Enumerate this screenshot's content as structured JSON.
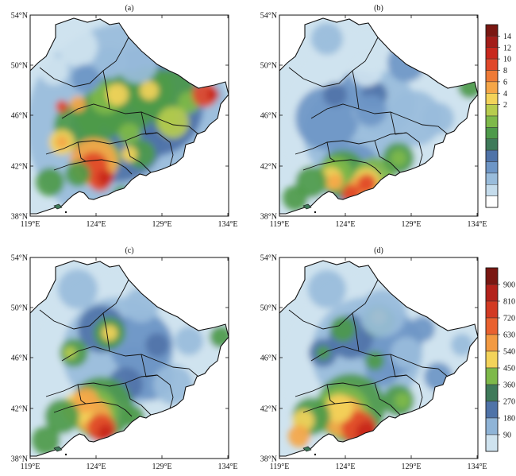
{
  "panels": [
    {
      "label": "(a)"
    },
    {
      "label": "(b)"
    },
    {
      "label": "(c)"
    },
    {
      "label": "(d)"
    }
  ],
  "lon_ticks": [
    "119°E",
    "124°E",
    "129°E",
    "134°E"
  ],
  "lat_ticks": [
    "54°N",
    "50°N",
    "46°N",
    "42°N",
    "38°N"
  ],
  "colorbar_top": {
    "labels": [
      "14",
      "12",
      "10",
      "8",
      "6",
      "4",
      "2"
    ],
    "colors": [
      "#7a1712",
      "#a31d19",
      "#c8281d",
      "#e0482a",
      "#ee7a36",
      "#f5a648",
      "#f3d35a",
      "#b7cc4e",
      "#7eb94a",
      "#4e9a4a",
      "#3f7a5a",
      "#4f73a8",
      "#6e96c6",
      "#99bcdb",
      "#c5dcec",
      "#ffffff"
    ]
  },
  "colorbar_bottom": {
    "labels": [
      "900",
      "810",
      "720",
      "630",
      "540",
      "450",
      "360",
      "270",
      "180",
      "90"
    ],
    "colors": [
      "#7a1712",
      "#b3221b",
      "#d23a23",
      "#e9612f",
      "#f29a42",
      "#f3d35a",
      "#7eb94a",
      "#3f7a5a",
      "#4f73a8",
      "#8fb4d7",
      "#cfe3ef"
    ]
  },
  "colors": {
    "border": "#111111",
    "ocean": "#ffffff",
    "axis": "#111111"
  }
}
